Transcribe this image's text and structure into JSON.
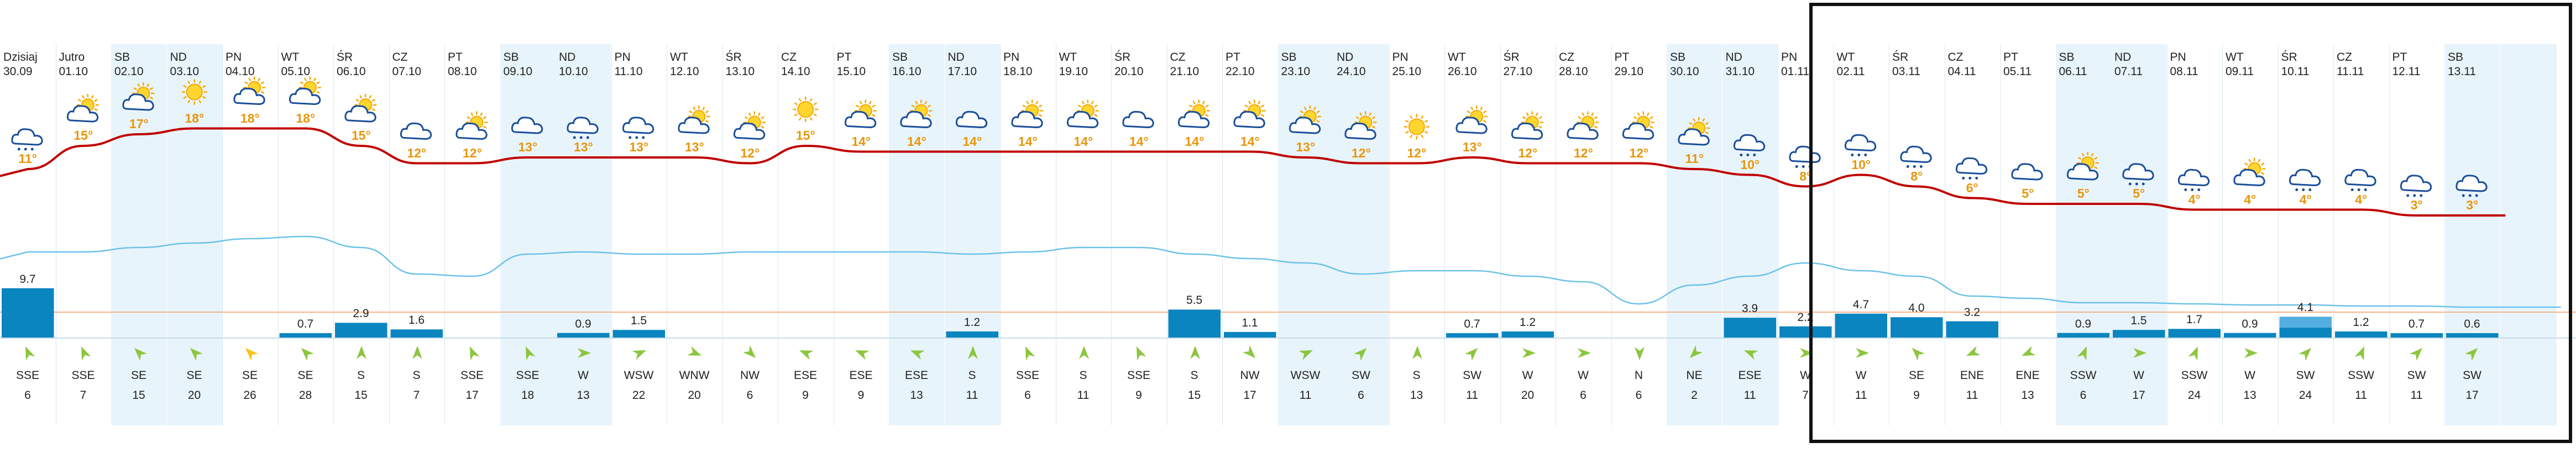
{
  "colors": {
    "shade": "#e8f4fb",
    "temp_line": "#c00000",
    "humidity_line": "#6cc2e8",
    "bar": "#0a85c0",
    "bar_light": "#54aee0",
    "temp_label": "#e8960a",
    "arrow": "#8cc63f",
    "arrow_alt": "#f5c518",
    "selection": "#111111"
  },
  "days": [
    {
      "name": "Dzisiaj",
      "date": "30.09",
      "temp": "11°",
      "icon": "rain-cloud-icon",
      "rain": 9.7,
      "rain_label": "9.7",
      "wind_dir": "SSE",
      "wind_speed": "6",
      "shade": false
    },
    {
      "name": "Jutro",
      "date": "01.10",
      "temp": "15°",
      "icon": "partly-sunny-icon",
      "rain": 0,
      "rain_label": "",
      "wind_dir": "SSE",
      "wind_speed": "7",
      "shade": false
    },
    {
      "name": "SB",
      "date": "02.10",
      "temp": "17°",
      "icon": "partly-sunny-icon",
      "rain": 0,
      "rain_label": "",
      "wind_dir": "SE",
      "wind_speed": "15",
      "shade": true
    },
    {
      "name": "ND",
      "date": "03.10",
      "temp": "18°",
      "icon": "sun-icon",
      "rain": 0,
      "rain_label": "",
      "wind_dir": "SE",
      "wind_speed": "20",
      "shade": true
    },
    {
      "name": "PN",
      "date": "04.10",
      "temp": "18°",
      "icon": "sun-cloud-icon",
      "rain": 0,
      "rain_label": "",
      "wind_dir": "SE",
      "wind_speed": "26",
      "shade": false
    },
    {
      "name": "WT",
      "date": "05.10",
      "temp": "18°",
      "icon": "sun-cloud-icon",
      "rain": 0.7,
      "rain_label": "0.7",
      "wind_dir": "SE",
      "wind_speed": "28",
      "shade": false
    },
    {
      "name": "ŚR",
      "date": "06.10",
      "temp": "15°",
      "icon": "sun-cloud-icon",
      "rain": 2.9,
      "rain_label": "2.9",
      "wind_dir": "S",
      "wind_speed": "15",
      "shade": false
    },
    {
      "name": "CZ",
      "date": "07.10",
      "temp": "12°",
      "icon": "cloud-icon",
      "rain": 1.6,
      "rain_label": "1.6",
      "wind_dir": "S",
      "wind_speed": "7",
      "shade": false
    },
    {
      "name": "PT",
      "date": "08.10",
      "temp": "12°",
      "icon": "partly-sunny-icon",
      "rain": 0,
      "rain_label": "",
      "wind_dir": "SSE",
      "wind_speed": "17",
      "shade": false
    },
    {
      "name": "SB",
      "date": "09.10",
      "temp": "13°",
      "icon": "cloud-icon",
      "rain": 0,
      "rain_label": "",
      "wind_dir": "SSE",
      "wind_speed": "18",
      "shade": true
    },
    {
      "name": "ND",
      "date": "10.10",
      "temp": "13°",
      "icon": "rain-cloud-icon",
      "rain": 0.9,
      "rain_label": "0.9",
      "wind_dir": "W",
      "wind_speed": "13",
      "shade": true
    },
    {
      "name": "PN",
      "date": "11.10",
      "temp": "13°",
      "icon": "rain-cloud-icon",
      "rain": 1.5,
      "rain_label": "1.5",
      "wind_dir": "WSW",
      "wind_speed": "22",
      "shade": false
    },
    {
      "name": "WT",
      "date": "12.10",
      "temp": "13°",
      "icon": "partly-sunny-icon",
      "rain": 0,
      "rain_label": "",
      "wind_dir": "WNW",
      "wind_speed": "20",
      "shade": false
    },
    {
      "name": "ŚR",
      "date": "13.10",
      "temp": "12°",
      "icon": "partly-sunny-icon",
      "rain": 0,
      "rain_label": "",
      "wind_dir": "NW",
      "wind_speed": "6",
      "shade": false
    },
    {
      "name": "CZ",
      "date": "14.10",
      "temp": "15°",
      "icon": "sun-icon",
      "rain": 0,
      "rain_label": "",
      "wind_dir": "ESE",
      "wind_speed": "9",
      "shade": false
    },
    {
      "name": "PT",
      "date": "15.10",
      "temp": "14°",
      "icon": "partly-sunny-icon",
      "rain": 0,
      "rain_label": "",
      "wind_dir": "ESE",
      "wind_speed": "9",
      "shade": false
    },
    {
      "name": "SB",
      "date": "16.10",
      "temp": "14°",
      "icon": "partly-sunny-icon",
      "rain": 0,
      "rain_label": "",
      "wind_dir": "ESE",
      "wind_speed": "13",
      "shade": true
    },
    {
      "name": "ND",
      "date": "17.10",
      "temp": "14°",
      "icon": "cloud-icon",
      "rain": 1.2,
      "rain_label": "1.2",
      "wind_dir": "S",
      "wind_speed": "11",
      "shade": true
    },
    {
      "name": "PN",
      "date": "18.10",
      "temp": "14°",
      "icon": "partly-sunny-icon",
      "rain": 0,
      "rain_label": "",
      "wind_dir": "SSE",
      "wind_speed": "6",
      "shade": false
    },
    {
      "name": "WT",
      "date": "19.10",
      "temp": "14°",
      "icon": "partly-sunny-icon",
      "rain": 0,
      "rain_label": "",
      "wind_dir": "S",
      "wind_speed": "11",
      "shade": false
    },
    {
      "name": "ŚR",
      "date": "20.10",
      "temp": "14°",
      "icon": "cloud-icon",
      "rain": 0,
      "rain_label": "",
      "wind_dir": "SSE",
      "wind_speed": "9",
      "shade": false
    },
    {
      "name": "CZ",
      "date": "21.10",
      "temp": "14°",
      "icon": "partly-sunny-icon",
      "rain": 5.5,
      "rain_label": "5.5",
      "wind_dir": "S",
      "wind_speed": "15",
      "shade": false
    },
    {
      "name": "PT",
      "date": "22.10",
      "temp": "14°",
      "icon": "partly-sunny-icon",
      "rain": 1.1,
      "rain_label": "1.1",
      "wind_dir": "NW",
      "wind_speed": "17",
      "shade": false
    },
    {
      "name": "SB",
      "date": "23.10",
      "temp": "13°",
      "icon": "partly-sunny-icon",
      "rain": 0,
      "rain_label": "",
      "wind_dir": "WSW",
      "wind_speed": "11",
      "shade": true
    },
    {
      "name": "ND",
      "date": "24.10",
      "temp": "12°",
      "icon": "partly-sunny-icon",
      "rain": 0,
      "rain_label": "",
      "wind_dir": "SW",
      "wind_speed": "6",
      "shade": true
    },
    {
      "name": "PN",
      "date": "25.10",
      "temp": "12°",
      "icon": "sun-icon",
      "rain": 0,
      "rain_label": "",
      "wind_dir": "S",
      "wind_speed": "13",
      "shade": false
    },
    {
      "name": "WT",
      "date": "26.10",
      "temp": "13°",
      "icon": "partly-sunny-icon",
      "rain": 0.7,
      "rain_label": "0.7",
      "wind_dir": "SW",
      "wind_speed": "11",
      "shade": false
    },
    {
      "name": "ŚR",
      "date": "27.10",
      "temp": "12°",
      "icon": "partly-sunny-icon",
      "rain": 1.2,
      "rain_label": "1.2",
      "wind_dir": "W",
      "wind_speed": "20",
      "shade": false
    },
    {
      "name": "CZ",
      "date": "28.10",
      "temp": "12°",
      "icon": "partly-sunny-icon",
      "rain": 0,
      "rain_label": "",
      "wind_dir": "W",
      "wind_speed": "6",
      "shade": false
    },
    {
      "name": "PT",
      "date": "29.10",
      "temp": "12°",
      "icon": "partly-sunny-icon",
      "rain": 0,
      "rain_label": "",
      "wind_dir": "N",
      "wind_speed": "6",
      "shade": false
    },
    {
      "name": "SB",
      "date": "30.10",
      "temp": "11°",
      "icon": "partly-sunny-icon",
      "rain": 0,
      "rain_label": "",
      "wind_dir": "NE",
      "wind_speed": "2",
      "shade": true
    },
    {
      "name": "ND",
      "date": "31.10",
      "temp": "10°",
      "icon": "rain-cloud-icon",
      "rain": 3.9,
      "rain_label": "3.9",
      "wind_dir": "ESE",
      "wind_speed": "11",
      "shade": true
    },
    {
      "name": "PN",
      "date": "01.11",
      "temp": "8°",
      "icon": "rain-cloud-icon",
      "rain": 2.2,
      "rain_label": "2.2",
      "wind_dir": "W",
      "wind_speed": "7",
      "shade": false
    },
    {
      "name": "WT",
      "date": "02.11",
      "temp": "10°",
      "icon": "rain-cloud-icon",
      "rain": 4.7,
      "rain_label": "4.7",
      "wind_dir": "W",
      "wind_speed": "11",
      "shade": false
    },
    {
      "name": "ŚR",
      "date": "03.11",
      "temp": "8°",
      "icon": "rain-cloud-icon",
      "rain": 4.0,
      "rain_label": "4.0",
      "wind_dir": "SE",
      "wind_speed": "9",
      "shade": false
    },
    {
      "name": "CZ",
      "date": "04.11",
      "temp": "6°",
      "icon": "rain-cloud-icon",
      "rain": 3.2,
      "rain_label": "3.2",
      "wind_dir": "ENE",
      "wind_speed": "11",
      "shade": false
    },
    {
      "name": "PT",
      "date": "05.11",
      "temp": "5°",
      "icon": "cloud-icon",
      "rain": 0,
      "rain_label": "",
      "wind_dir": "ENE",
      "wind_speed": "13",
      "shade": false
    },
    {
      "name": "SB",
      "date": "06.11",
      "temp": "5°",
      "icon": "partly-sunny-icon",
      "rain": 0.9,
      "rain_label": "0.9",
      "wind_dir": "SSW",
      "wind_speed": "6",
      "shade": true
    },
    {
      "name": "ND",
      "date": "07.11",
      "temp": "5°",
      "icon": "rain-cloud-icon",
      "rain": 1.5,
      "rain_label": "1.5",
      "wind_dir": "W",
      "wind_speed": "17",
      "shade": true
    },
    {
      "name": "PN",
      "date": "08.11",
      "temp": "4°",
      "icon": "rain-cloud-icon",
      "rain": 1.7,
      "rain_label": "1.7",
      "wind_dir": "SSW",
      "wind_speed": "24",
      "shade": false
    },
    {
      "name": "WT",
      "date": "09.11",
      "temp": "4°",
      "icon": "partly-sunny-icon",
      "rain": 0.9,
      "rain_label": "0.9",
      "wind_dir": "W",
      "wind_speed": "13",
      "shade": false
    },
    {
      "name": "ŚR",
      "date": "10.11",
      "temp": "4°",
      "icon": "rain-cloud-icon",
      "rain": 4.1,
      "rain_label": "4.1",
      "wind_dir": "SW",
      "wind_speed": "24",
      "shade": false
    },
    {
      "name": "CZ",
      "date": "11.11",
      "temp": "4°",
      "icon": "rain-cloud-icon",
      "rain": 1.2,
      "rain_label": "1.2",
      "wind_dir": "SSW",
      "wind_speed": "11",
      "shade": false
    },
    {
      "name": "PT",
      "date": "12.11",
      "temp": "3°",
      "icon": "rain-cloud-icon",
      "rain": 0.7,
      "rain_label": "0.7",
      "wind_dir": "SW",
      "wind_speed": "11",
      "shade": false
    },
    {
      "name": "SB",
      "date": "13.11",
      "temp": "3°",
      "icon": "rain-cloud-icon",
      "rain": 0.6,
      "rain_label": "0.6",
      "wind_dir": "SW",
      "wind_speed": "17",
      "shade": true
    },
    {
      "name": "",
      "date": "",
      "temp": "",
      "icon": "",
      "rain": 0,
      "rain_label": "",
      "wind_dir": "",
      "wind_speed": "",
      "shade": true
    }
  ],
  "humidity_levels": [
    0.52,
    0.52,
    0.56,
    0.6,
    0.64,
    0.66,
    0.56,
    0.32,
    0.3,
    0.5,
    0.52,
    0.5,
    0.5,
    0.52,
    0.52,
    0.52,
    0.52,
    0.5,
    0.52,
    0.56,
    0.56,
    0.5,
    0.46,
    0.42,
    0.32,
    0.35,
    0.35,
    0.3,
    0.25,
    0.05,
    0.22,
    0.3,
    0.42,
    0.35,
    0.3,
    0.12,
    0.1,
    0.06,
    0.06,
    0.05,
    0.04,
    0.04,
    0.03,
    0.03,
    0.02,
    0.02
  ]
}
